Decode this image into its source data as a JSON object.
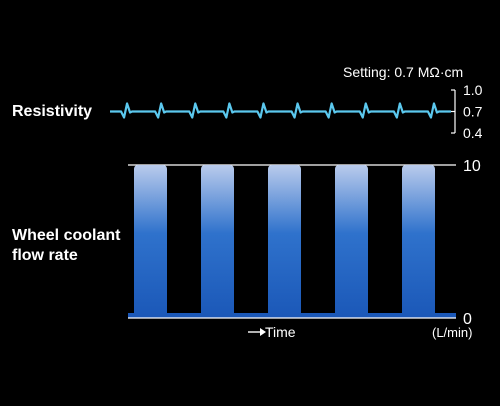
{
  "setting_text": "Setting: 0.7 MΩ·cm",
  "resistivity_label": "Resistivity",
  "flow_label_lines": [
    "Wheel coolant",
    "flow rate"
  ],
  "time_label": "Time",
  "unit_label": "(L/min)",
  "colors": {
    "background": "#000000",
    "resistivity_line": "#5bc8ee",
    "bar_top": "#b7c9ec",
    "bar_bottom": "#1e5fbf"
  },
  "chart_data": [
    {
      "type": "line",
      "series": [
        {
          "values": [
            0.7,
            0.7,
            0.7,
            0.7,
            0.7,
            0.7,
            0.7,
            0.7,
            0.7,
            0.7,
            0.7
          ]
        }
      ],
      "dip_count": 10,
      "yticks": [
        "1.0",
        "0.7",
        "0.4"
      ],
      "ylim": [
        0.4,
        1.0
      ]
    },
    {
      "type": "bar",
      "pulse_count": 5,
      "pulse_value": 10,
      "baseline_value": 0,
      "yticks": [
        "10",
        "0"
      ],
      "ylim": [
        0,
        10
      ],
      "xlabel": "Time"
    }
  ]
}
